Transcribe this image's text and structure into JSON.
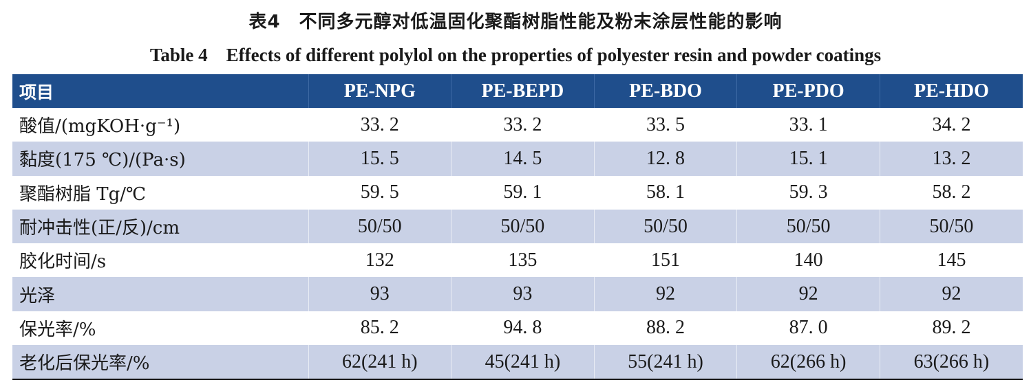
{
  "title_cn": "表4　不同多元醇对低温固化聚酯树脂性能及粉末涂层性能的影响",
  "title_en": "Table 4　Effects of different polylol on the properties of polyester resin and powder coatings",
  "table": {
    "headers": [
      "项目",
      "PE-NPG",
      "PE-BEPD",
      "PE-BDO",
      "PE-PDO",
      "PE-HDO"
    ],
    "rows": [
      [
        "酸值/(mgKOH·g⁻¹)",
        "33. 2",
        "33. 2",
        "33. 5",
        "33. 1",
        "34. 2"
      ],
      [
        "黏度(175 ℃)/(Pa·s)",
        "15. 5",
        "14. 5",
        "12. 8",
        "15. 1",
        "13. 2"
      ],
      [
        "聚酯树脂 Tg/℃",
        "59. 5",
        "59. 1",
        "58. 1",
        "59. 3",
        "58. 2"
      ],
      [
        "耐冲击性(正/反)/cm",
        "50/50",
        "50/50",
        "50/50",
        "50/50",
        "50/50"
      ],
      [
        "胶化时间/s",
        "132",
        "135",
        "151",
        "140",
        "145"
      ],
      [
        "光泽",
        "93",
        "93",
        "92",
        "92",
        "92"
      ],
      [
        "保光率/%",
        "85. 2",
        "94. 8",
        "88. 2",
        "87. 0",
        "89. 2"
      ],
      [
        "老化后保光率/%",
        "62(241 h)",
        "45(241 h)",
        "55(241 h)",
        "62(266 h)",
        "63(266 h)"
      ]
    ]
  },
  "colors": {
    "header_bg": "#1f4e8c",
    "header_text": "#ffffff",
    "stripe_bg": "#c9d1e6"
  }
}
